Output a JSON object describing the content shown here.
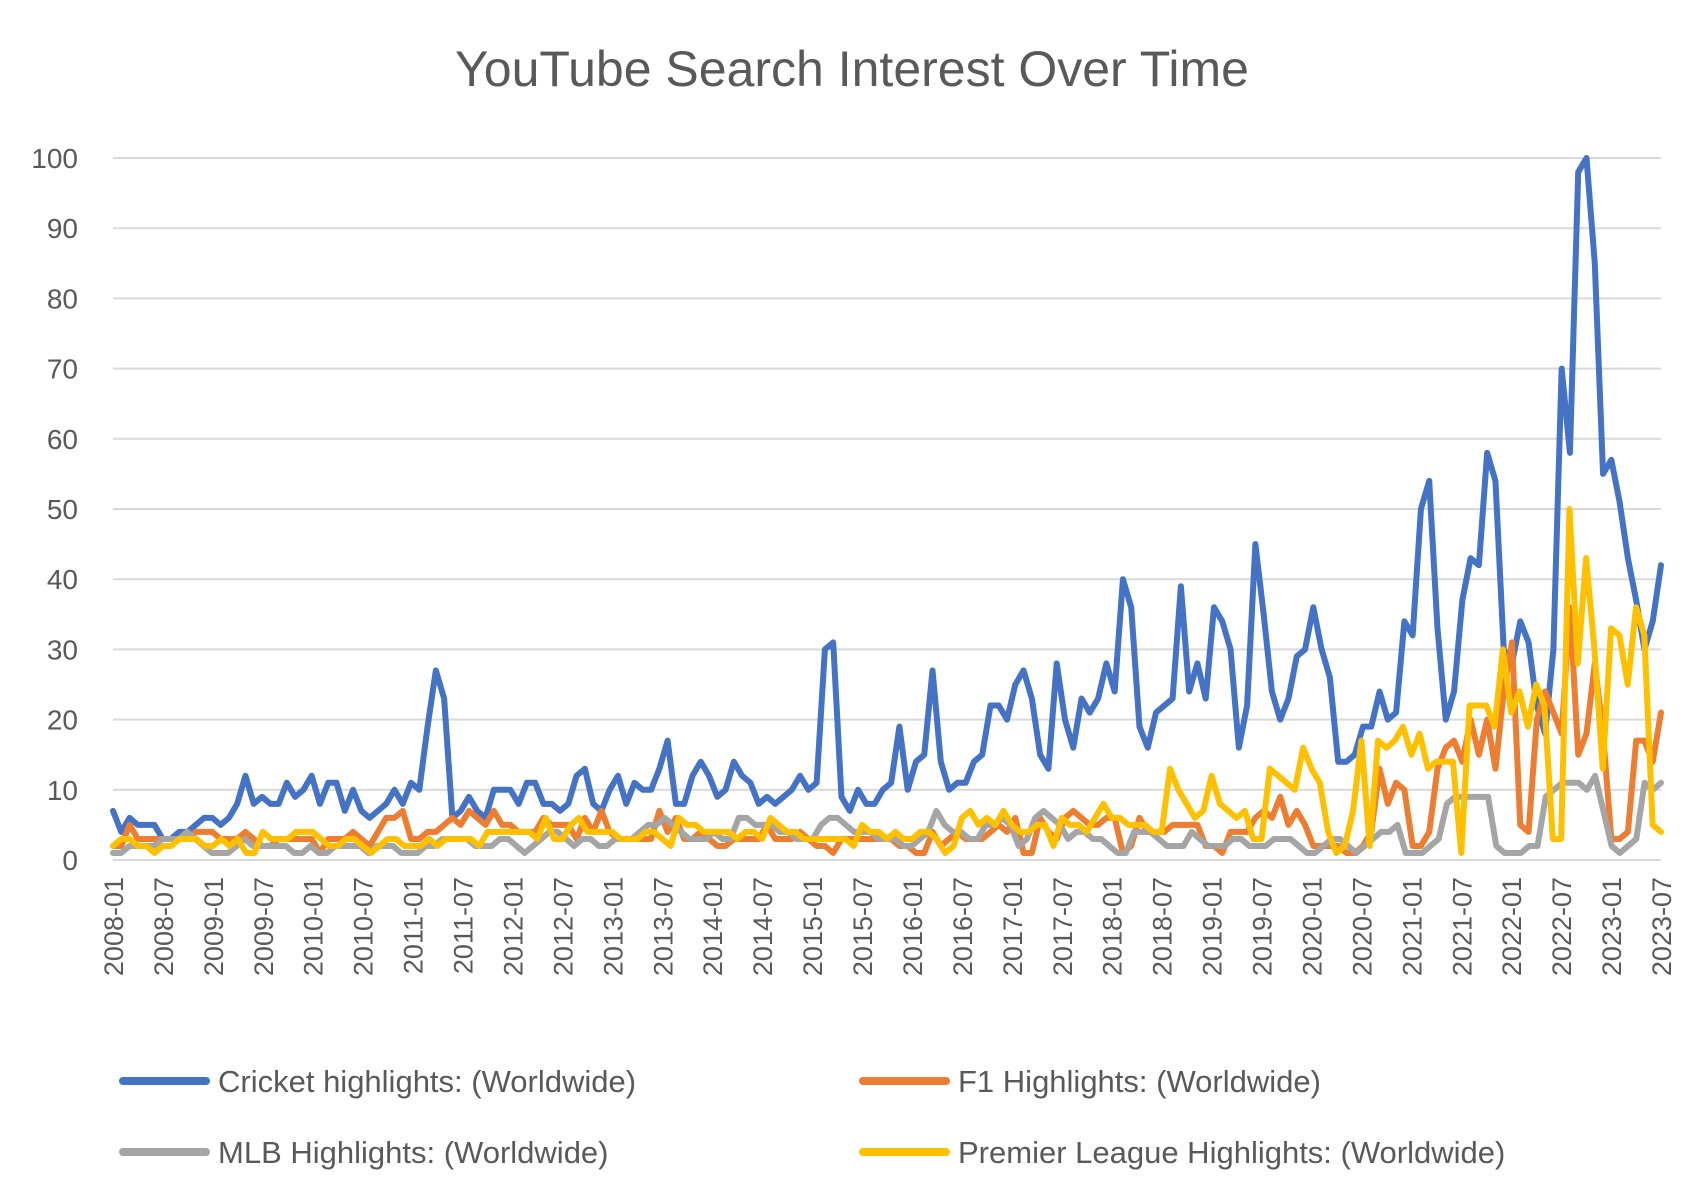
{
  "chart_data": {
    "type": "line",
    "title": "YouTube Search Interest Over Time",
    "xlabel": "",
    "ylabel": "",
    "ylim": [
      0,
      100
    ],
    "y_ticks": [
      "0",
      "10",
      "20",
      "30",
      "40",
      "50",
      "60",
      "70",
      "80",
      "90",
      "100"
    ],
    "x_start": "2008-01",
    "x_end": "2023-07",
    "x_tick_labels": [
      "2008-01",
      "2008-07",
      "2009-01",
      "2009-07",
      "2010-01",
      "2010-07",
      "2011-01",
      "2011-07",
      "2012-01",
      "2012-07",
      "2013-01",
      "2013-07",
      "2014-01",
      "2014-07",
      "2015-01",
      "2015-07",
      "2016-01",
      "2016-07",
      "2017-01",
      "2017-07",
      "2018-01",
      "2018-07",
      "2019-01",
      "2019-07",
      "2020-01",
      "2020-07",
      "2021-01",
      "2021-07",
      "2022-01",
      "2022-07",
      "2023-01",
      "2023-07"
    ],
    "grid": true,
    "legend_position": "bottom",
    "series": [
      {
        "name": "Cricket highlights: (Worldwide)",
        "color": "#4472C4",
        "values": [
          7,
          4,
          6,
          5,
          5,
          5,
          3,
          3,
          4,
          4,
          5,
          6,
          6,
          5,
          6,
          8,
          12,
          8,
          9,
          8,
          8,
          11,
          9,
          10,
          12,
          8,
          11,
          11,
          7,
          10,
          7,
          6,
          7,
          8,
          10,
          8,
          11,
          10,
          19,
          27,
          23,
          6,
          7,
          9,
          7,
          6,
          10,
          10,
          10,
          8,
          11,
          11,
          8,
          8,
          7,
          8,
          12,
          13,
          8,
          7,
          10,
          12,
          8,
          11,
          10,
          10,
          13,
          17,
          8,
          8,
          12,
          14,
          12,
          9,
          10,
          14,
          12,
          11,
          8,
          9,
          8,
          9,
          10,
          12,
          10,
          11,
          30,
          31,
          9,
          7,
          10,
          8,
          8,
          10,
          11,
          19,
          10,
          14,
          15,
          27,
          14,
          10,
          11,
          11,
          14,
          15,
          22,
          22,
          20,
          25,
          27,
          23,
          15,
          13,
          28,
          20,
          16,
          23,
          21,
          23,
          28,
          24,
          40,
          36,
          19,
          16,
          21,
          22,
          23,
          39,
          24,
          28,
          23,
          36,
          34,
          30,
          16,
          22,
          45,
          35,
          24,
          20,
          23,
          29,
          30,
          36,
          30,
          26,
          14,
          14,
          15,
          19,
          19,
          24,
          20,
          21,
          34,
          32,
          50,
          54,
          33,
          20,
          24,
          37,
          43,
          42,
          58,
          54,
          30,
          28,
          34,
          31,
          22,
          18,
          30,
          70,
          58,
          98,
          100,
          85,
          55,
          57,
          51,
          43,
          37,
          30,
          34,
          42
        ]
      },
      {
        "name": "F1 Highlights: (Worldwide)",
        "color": "#ED7D31",
        "values": [
          2,
          2,
          5,
          3,
          3,
          3,
          3,
          3,
          3,
          3,
          4,
          4,
          4,
          3,
          3,
          3,
          4,
          3,
          2,
          2,
          3,
          3,
          3,
          3,
          3,
          1,
          3,
          3,
          3,
          4,
          3,
          2,
          4,
          6,
          6,
          7,
          3,
          3,
          4,
          4,
          5,
          6,
          5,
          7,
          6,
          5,
          7,
          5,
          5,
          4,
          4,
          4,
          6,
          5,
          5,
          5,
          3,
          6,
          4,
          7,
          4,
          3,
          3,
          3,
          3,
          3,
          7,
          4,
          6,
          3,
          3,
          4,
          3,
          2,
          2,
          3,
          3,
          3,
          3,
          5,
          3,
          3,
          3,
          4,
          3,
          2,
          2,
          1,
          3,
          3,
          3,
          3,
          3,
          3,
          3,
          2,
          2,
          1,
          1,
          4,
          2,
          3,
          4,
          3,
          3,
          3,
          4,
          5,
          4,
          6,
          1,
          1,
          6,
          4,
          3,
          6,
          7,
          6,
          5,
          5,
          6,
          6,
          1,
          2,
          6,
          4,
          4,
          4,
          5,
          5,
          5,
          5,
          2,
          2,
          1,
          4,
          4,
          4,
          6,
          7,
          6,
          9,
          5,
          7,
          5,
          2,
          2,
          2,
          2,
          1,
          1,
          2,
          4,
          13,
          8,
          11,
          10,
          2,
          2,
          4,
          13,
          16,
          17,
          14,
          20,
          15,
          20,
          13,
          24,
          31,
          5,
          4,
          20,
          24,
          21,
          18,
          36,
          15,
          18,
          28,
          18,
          3,
          3,
          4,
          17,
          17,
          14,
          21
        ]
      },
      {
        "name": "MLB Highlights: (Worldwide)",
        "color": "#A5A5A5",
        "values": [
          1,
          1,
          2,
          2,
          2,
          2,
          3,
          3,
          3,
          4,
          3,
          2,
          1,
          1,
          1,
          2,
          3,
          2,
          2,
          2,
          2,
          2,
          1,
          1,
          2,
          1,
          1,
          2,
          2,
          2,
          2,
          1,
          2,
          2,
          2,
          1,
          1,
          1,
          2,
          2,
          3,
          3,
          3,
          3,
          2,
          2,
          2,
          3,
          3,
          2,
          1,
          2,
          3,
          4,
          4,
          3,
          2,
          3,
          3,
          2,
          2,
          3,
          3,
          3,
          4,
          5,
          5,
          6,
          5,
          4,
          3,
          3,
          3,
          4,
          3,
          3,
          6,
          6,
          5,
          5,
          5,
          4,
          4,
          3,
          3,
          3,
          5,
          6,
          6,
          5,
          4,
          4,
          4,
          3,
          3,
          3,
          2,
          2,
          3,
          4,
          7,
          5,
          4,
          4,
          3,
          3,
          5,
          5,
          6,
          5,
          2,
          3,
          6,
          7,
          6,
          5,
          3,
          4,
          4,
          3,
          3,
          2,
          1,
          1,
          4,
          4,
          4,
          3,
          2,
          2,
          2,
          4,
          3,
          2,
          2,
          2,
          3,
          3,
          2,
          2,
          2,
          3,
          3,
          3,
          2,
          1,
          1,
          2,
          3,
          3,
          2,
          1,
          2,
          3,
          4,
          4,
          5,
          1,
          1,
          1,
          2,
          3,
          8,
          9,
          9,
          9,
          9,
          9,
          2,
          1,
          1,
          1,
          2,
          2,
          9,
          10,
          11,
          11,
          11,
          10,
          12,
          7,
          2,
          1,
          2,
          3,
          11,
          10,
          11
        ]
      },
      {
        "name": "Premier League Highlights: (Worldwide)",
        "color": "#FFC000",
        "values": [
          2,
          3,
          3,
          2,
          2,
          1,
          2,
          2,
          3,
          3,
          3,
          2,
          2,
          3,
          2,
          3,
          1,
          1,
          4,
          3,
          3,
          3,
          4,
          4,
          4,
          3,
          2,
          2,
          3,
          3,
          2,
          1,
          2,
          3,
          3,
          2,
          2,
          2,
          3,
          2,
          3,
          3,
          3,
          3,
          2,
          4,
          4,
          4,
          4,
          4,
          4,
          3,
          6,
          3,
          3,
          5,
          6,
          4,
          4,
          4,
          4,
          3,
          3,
          3,
          4,
          4,
          3,
          2,
          6,
          5,
          5,
          4,
          4,
          4,
          4,
          3,
          4,
          4,
          3,
          6,
          5,
          4,
          4,
          3,
          3,
          3,
          3,
          3,
          3,
          2,
          5,
          4,
          4,
          3,
          4,
          3,
          3,
          4,
          4,
          3,
          1,
          2,
          6,
          7,
          5,
          6,
          5,
          7,
          5,
          4,
          4,
          5,
          5,
          2,
          6,
          5,
          5,
          4,
          6,
          8,
          6,
          6,
          5,
          5,
          5,
          4,
          4,
          13,
          10,
          8,
          6,
          7,
          12,
          8,
          7,
          6,
          7,
          3,
          3,
          13,
          12,
          11,
          10,
          16,
          13,
          11,
          4,
          1,
          2,
          7,
          17,
          2,
          17,
          16,
          17,
          19,
          15,
          18,
          13,
          14,
          14,
          14,
          1,
          22,
          22,
          22,
          19,
          30,
          21,
          24,
          19,
          25,
          22,
          3,
          3,
          50,
          28,
          43,
          30,
          13,
          33,
          32,
          25,
          36,
          32,
          5,
          4
        ]
      }
    ]
  }
}
